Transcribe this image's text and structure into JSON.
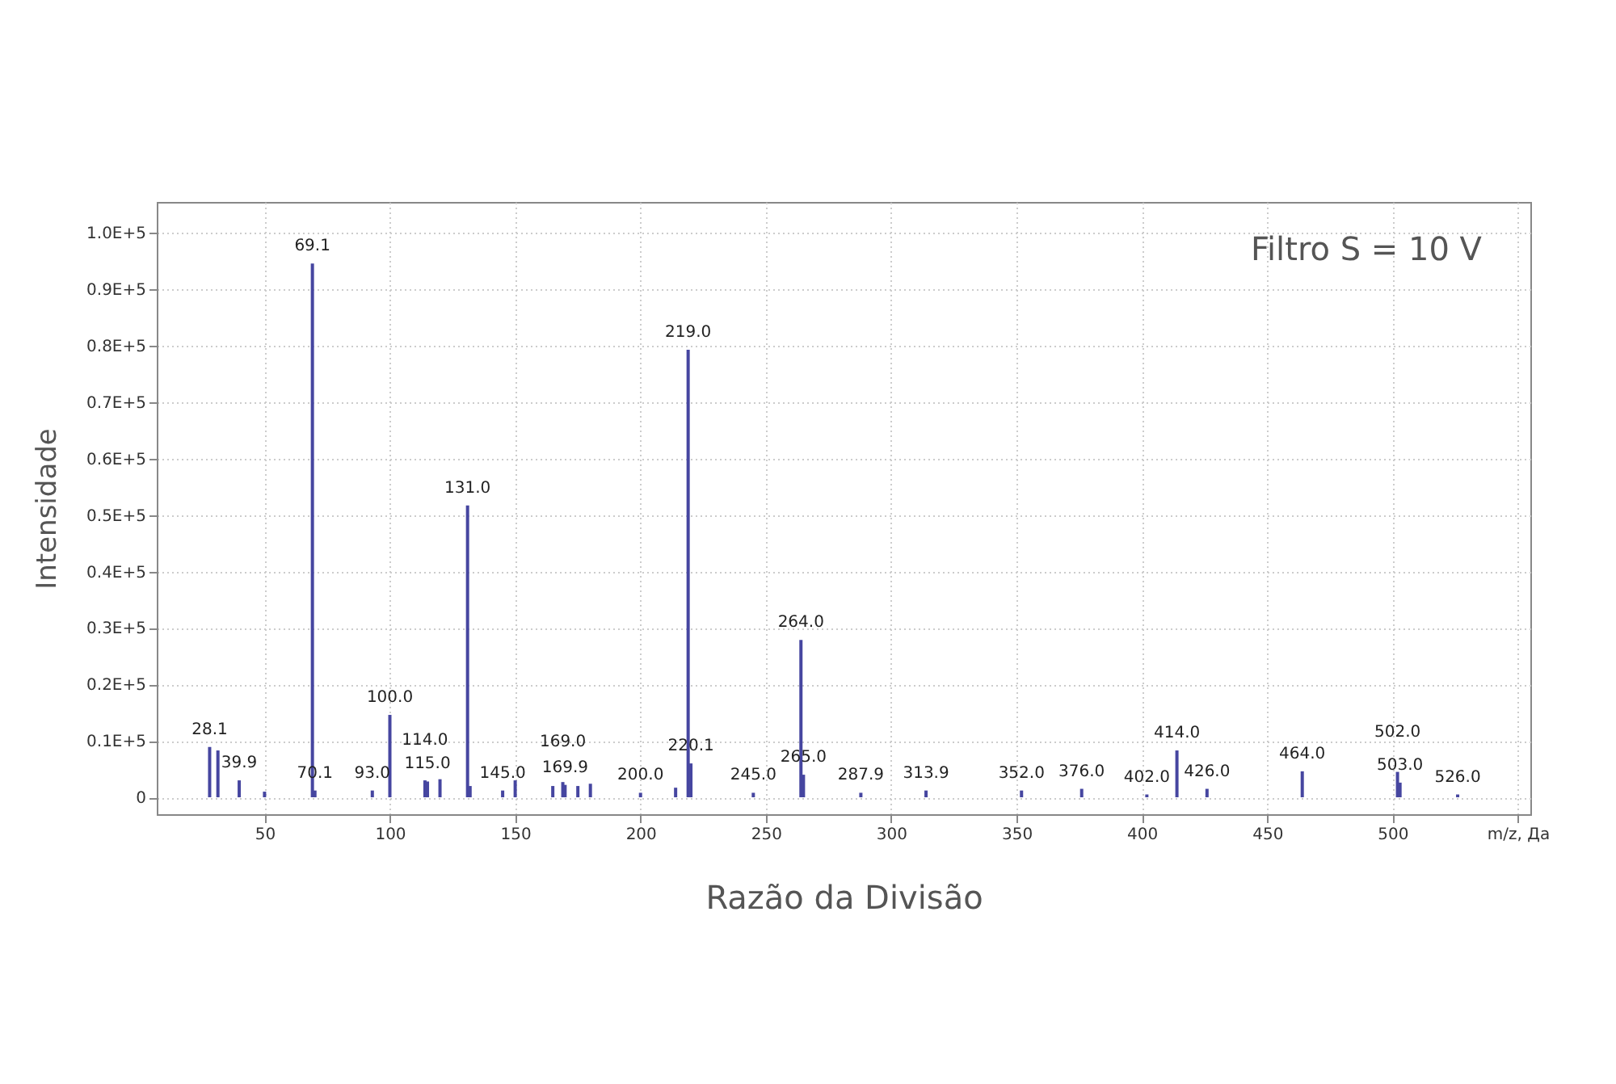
{
  "chart_data": {
    "type": "bar",
    "xlabel": "Razão da Divisão",
    "ylabel": "Intensidade",
    "x": [
      28.1,
      31.4,
      39.9,
      50.0,
      69.1,
      70.1,
      93.0,
      100.0,
      114.0,
      115.0,
      120.0,
      131.0,
      132.0,
      145.0,
      150.0,
      165.0,
      169.0,
      169.9,
      175.0,
      180.0,
      200.0,
      214.0,
      219.0,
      220.1,
      245.0,
      264.0,
      265.0,
      287.9,
      313.9,
      352.0,
      376.0,
      402.0,
      414.0,
      426.0,
      464.0,
      502.0,
      503.0,
      526.0
    ],
    "series": [
      {
        "color": "#4646a0",
        "values": [
          8900,
          8300,
          3000,
          1000,
          94600,
          1200,
          1200,
          14600,
          3000,
          2800,
          3200,
          51700,
          2000,
          1200,
          3000,
          2000,
          2700,
          2200,
          2000,
          2400,
          800,
          1700,
          79300,
          6000,
          800,
          27900,
          4000,
          800,
          1200,
          1200,
          1500,
          500,
          8300,
          1500,
          4600,
          4500,
          2600,
          500
        ]
      }
    ],
    "xlim": [
      7,
      555
    ],
    "xticks": [
      50,
      100,
      150,
      200,
      250,
      300,
      350,
      400,
      450,
      500,
      {
        "value": 550,
        "label": "m/z, Да"
      }
    ],
    "ylim": [
      -3000,
      105500
    ],
    "yticks": [
      0,
      {
        "value": 10000,
        "label": "0.1E+5"
      },
      {
        "value": 20000,
        "label": "0.2E+5"
      },
      {
        "value": 30000,
        "label": "0.3E+5"
      },
      {
        "value": 40000,
        "label": "0.4E+5"
      },
      {
        "value": 50000,
        "label": "0.5E+5"
      },
      {
        "value": 60000,
        "label": "0.6E+5"
      },
      {
        "value": 70000,
        "label": "0.7E+5"
      },
      {
        "value": 80000,
        "label": "0.8E+5"
      },
      {
        "value": 90000,
        "label": "0.9E+5"
      },
      {
        "value": 100000,
        "label": "1.0E+5"
      }
    ],
    "grid": true,
    "annotations": [
      {
        "text": "28.1",
        "x": 28.1,
        "y": 8900
      },
      {
        "text": "39.9",
        "x": 39.9,
        "y": 3000
      },
      {
        "text": "69.1",
        "x": 69.1,
        "y": 94600
      },
      {
        "text": "70.1",
        "x": 70.1,
        "y": 1200
      },
      {
        "text": "93.0",
        "x": 93.0,
        "y": 1200
      },
      {
        "text": "100.0",
        "x": 100.0,
        "y": 14600
      },
      {
        "text": "115.0",
        "x": 115.0,
        "y": 2800
      },
      {
        "text": "114.0",
        "x": 114.0,
        "y": 3000
      },
      {
        "text": "131.0",
        "x": 131.0,
        "y": 51700
      },
      {
        "text": "145.0",
        "x": 145.0,
        "y": 1200
      },
      {
        "text": "169.9",
        "x": 169.9,
        "y": 2200
      },
      {
        "text": "169.0",
        "x": 169.0,
        "y": 2700
      },
      {
        "text": "200.0",
        "x": 200.0,
        "y": 800
      },
      {
        "text": "219.0",
        "x": 219.0,
        "y": 79300
      },
      {
        "text": "220.1",
        "x": 220.1,
        "y": 6000
      },
      {
        "text": "245.0",
        "x": 245.0,
        "y": 800
      },
      {
        "text": "264.0",
        "x": 264.0,
        "y": 27900
      },
      {
        "text": "265.0",
        "x": 265.0,
        "y": 4000
      },
      {
        "text": "287.9",
        "x": 287.9,
        "y": 800
      },
      {
        "text": "313.9",
        "x": 313.9,
        "y": 1200
      },
      {
        "text": "352.0",
        "x": 352.0,
        "y": 1200
      },
      {
        "text": "376.0",
        "x": 376.0,
        "y": 1500
      },
      {
        "text": "402.0",
        "x": 402.0,
        "y": 500
      },
      {
        "text": "414.0",
        "x": 414.0,
        "y": 8300
      },
      {
        "text": "426.0",
        "x": 426.0,
        "y": 1500
      },
      {
        "text": "464.0",
        "x": 464.0,
        "y": 4600
      },
      {
        "text": "503.0",
        "x": 503.0,
        "y": 2600
      },
      {
        "text": "502.0",
        "x": 502.0,
        "y": 4500
      },
      {
        "text": "526.0",
        "x": 526.0,
        "y": 500
      },
      "Filtro S = 10 V"
    ]
  }
}
